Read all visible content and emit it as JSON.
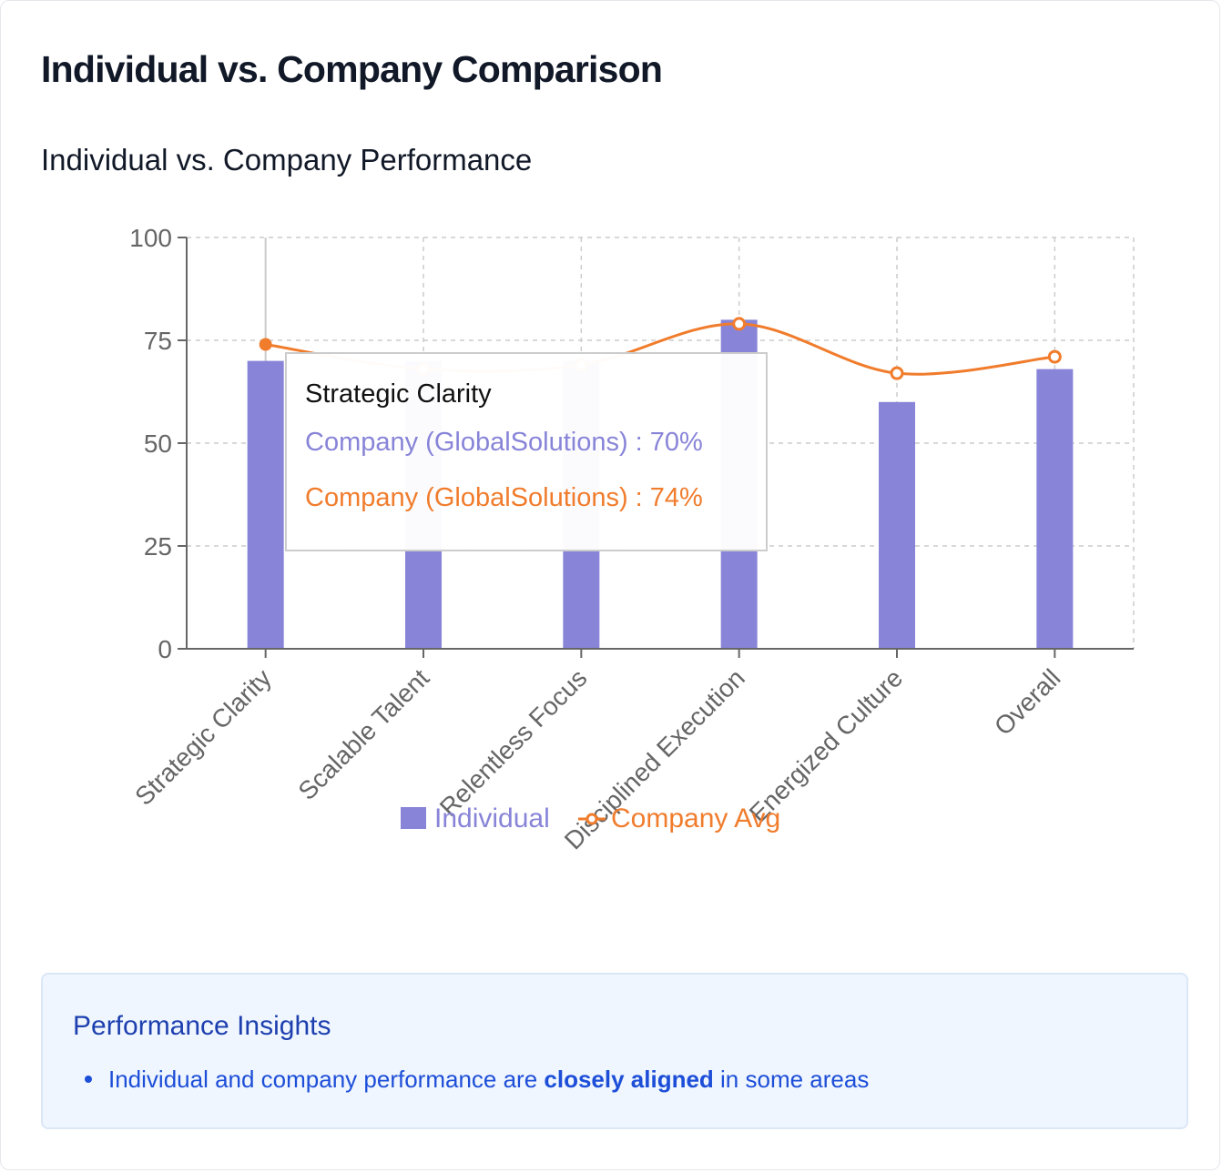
{
  "page": {
    "title": "Individual vs. Company Comparison"
  },
  "chart_data": {
    "type": "bar",
    "title": "Individual vs. Company Performance",
    "categories": [
      "Strategic Clarity",
      "Scalable Talent",
      "Relentless Focus",
      "Disciplined Execution",
      "Energized Culture",
      "Overall"
    ],
    "series": [
      {
        "name": "Individual",
        "type": "bar",
        "color": "#8884d8",
        "values": [
          70,
          70,
          70,
          80,
          60,
          68
        ]
      },
      {
        "name": "Company Avg",
        "type": "line",
        "color": "#f07c2c",
        "values": [
          74,
          68,
          69,
          79,
          67,
          71
        ]
      }
    ],
    "yticks": [
      0,
      25,
      50,
      75,
      100
    ],
    "ylim": [
      0,
      100
    ],
    "grid": true,
    "legend": "bottom-center",
    "tooltip": {
      "label": "Strategic Clarity",
      "rows": [
        {
          "text": "Company (GlobalSolutions) : 70%",
          "color": "#8884d8"
        },
        {
          "text": "Company (GlobalSolutions) : 74%",
          "color": "#f07c2c"
        }
      ]
    }
  },
  "insights": {
    "title": "Performance Insights",
    "items": [
      {
        "before": "Individual and company performance are ",
        "bold": "closely aligned",
        "after": " in some areas"
      }
    ]
  }
}
